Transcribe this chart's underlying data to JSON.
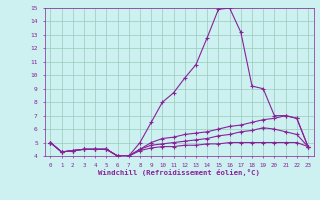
{
  "xlabel": "Windchill (Refroidissement éolien,°C)",
  "xlim": [
    -0.5,
    23.5
  ],
  "ylim": [
    4,
    15
  ],
  "yticks": [
    4,
    5,
    6,
    7,
    8,
    9,
    10,
    11,
    12,
    13,
    14,
    15
  ],
  "xticks": [
    0,
    1,
    2,
    3,
    4,
    5,
    6,
    7,
    8,
    9,
    10,
    11,
    12,
    13,
    14,
    15,
    16,
    17,
    18,
    19,
    20,
    21,
    22,
    23
  ],
  "bg_color": "#cdf0f0",
  "line_color": "#882299",
  "grid_color": "#99ccbb",
  "lines": [
    [
      5.0,
      4.3,
      4.4,
      4.5,
      4.5,
      4.5,
      4.0,
      4.0,
      5.0,
      6.5,
      8.0,
      8.7,
      9.8,
      10.8,
      12.8,
      14.9,
      15.0,
      13.2,
      9.2,
      9.0,
      7.0,
      7.0,
      6.8,
      4.7
    ],
    [
      5.0,
      4.3,
      4.4,
      4.5,
      4.5,
      4.5,
      4.0,
      4.0,
      4.5,
      5.0,
      5.3,
      5.4,
      5.6,
      5.7,
      5.8,
      6.0,
      6.2,
      6.3,
      6.5,
      6.7,
      6.8,
      7.0,
      6.8,
      4.7
    ],
    [
      5.0,
      4.3,
      4.4,
      4.5,
      4.5,
      4.5,
      4.0,
      4.0,
      4.5,
      4.8,
      4.9,
      5.0,
      5.1,
      5.2,
      5.3,
      5.5,
      5.6,
      5.8,
      5.9,
      6.1,
      6.0,
      5.8,
      5.6,
      4.7
    ],
    [
      5.0,
      4.3,
      4.4,
      4.5,
      4.5,
      4.5,
      4.0,
      4.0,
      4.4,
      4.6,
      4.7,
      4.7,
      4.8,
      4.8,
      4.9,
      4.9,
      5.0,
      5.0,
      5.0,
      5.0,
      5.0,
      5.0,
      5.0,
      4.7
    ]
  ]
}
